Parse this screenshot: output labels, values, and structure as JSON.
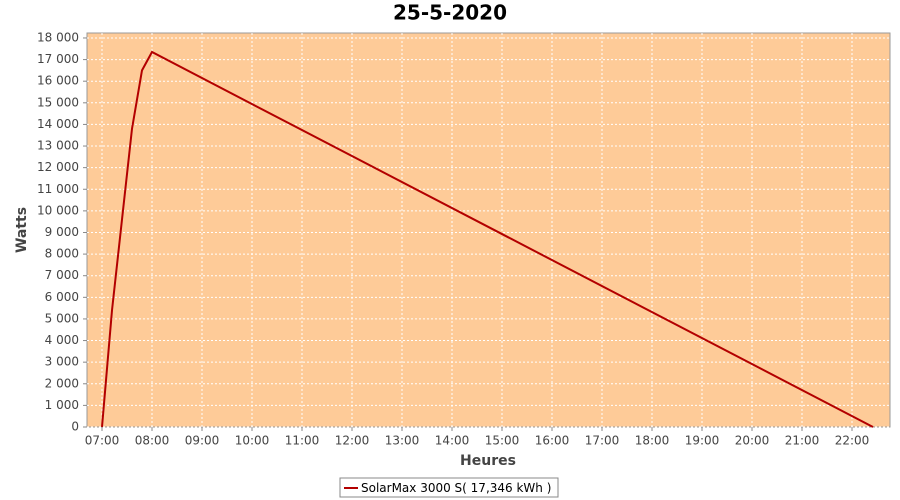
{
  "chart_data": {
    "type": "line",
    "title": "25-5-2020",
    "x_label": "Heures",
    "y_label": "Watts",
    "x": [
      7.0,
      7.2,
      7.4,
      7.6,
      7.8,
      8.0,
      22.42
    ],
    "series": [
      {
        "name": "SolarMax 3000 S( 17,346 kWh )",
        "color": "#b30000",
        "values": [
          0,
          5400,
          9600,
          13800,
          16500,
          17350,
          0
        ]
      }
    ],
    "xlim": [
      6.7,
      22.76
    ],
    "xticks": [
      {
        "value": 7,
        "label": "07:00"
      },
      {
        "value": 8,
        "label": "08:00"
      },
      {
        "value": 9,
        "label": "09:00"
      },
      {
        "value": 10,
        "label": "10:00"
      },
      {
        "value": 11,
        "label": "11:00"
      },
      {
        "value": 12,
        "label": "12:00"
      },
      {
        "value": 13,
        "label": "13:00"
      },
      {
        "value": 14,
        "label": "14:00"
      },
      {
        "value": 15,
        "label": "15:00"
      },
      {
        "value": 16,
        "label": "16:00"
      },
      {
        "value": 17,
        "label": "17:00"
      },
      {
        "value": 18,
        "label": "18:00"
      },
      {
        "value": 19,
        "label": "19:00"
      },
      {
        "value": 20,
        "label": "20:00"
      },
      {
        "value": 21,
        "label": "21:00"
      },
      {
        "value": 22,
        "label": "22:00"
      }
    ],
    "ylim": [
      0,
      18230
    ],
    "yticks": [
      0,
      {
        "value": 1000,
        "label": "1 000"
      },
      {
        "value": 2000,
        "label": "2 000"
      },
      {
        "value": 3000,
        "label": "3 000"
      },
      {
        "value": 4000,
        "label": "4 000"
      },
      {
        "value": 5000,
        "label": "5 000"
      },
      {
        "value": 6000,
        "label": "6 000"
      },
      {
        "value": 7000,
        "label": "7 000"
      },
      {
        "value": 8000,
        "label": "8 000"
      },
      {
        "value": 9000,
        "label": "9 000"
      },
      {
        "value": 10000,
        "label": "10 000"
      },
      {
        "value": 11000,
        "label": "11 000"
      },
      {
        "value": 12000,
        "label": "12 000"
      },
      {
        "value": 13000,
        "label": "13 000"
      },
      {
        "value": 14000,
        "label": "14 000"
      },
      {
        "value": 15000,
        "label": "15 000"
      },
      {
        "value": 16000,
        "label": "16 000"
      },
      {
        "value": 17000,
        "label": "17 000"
      },
      {
        "value": 18000,
        "label": "18 000"
      }
    ],
    "grid": true,
    "plot_background": "#fecb98",
    "legend_position": "bottom"
  }
}
